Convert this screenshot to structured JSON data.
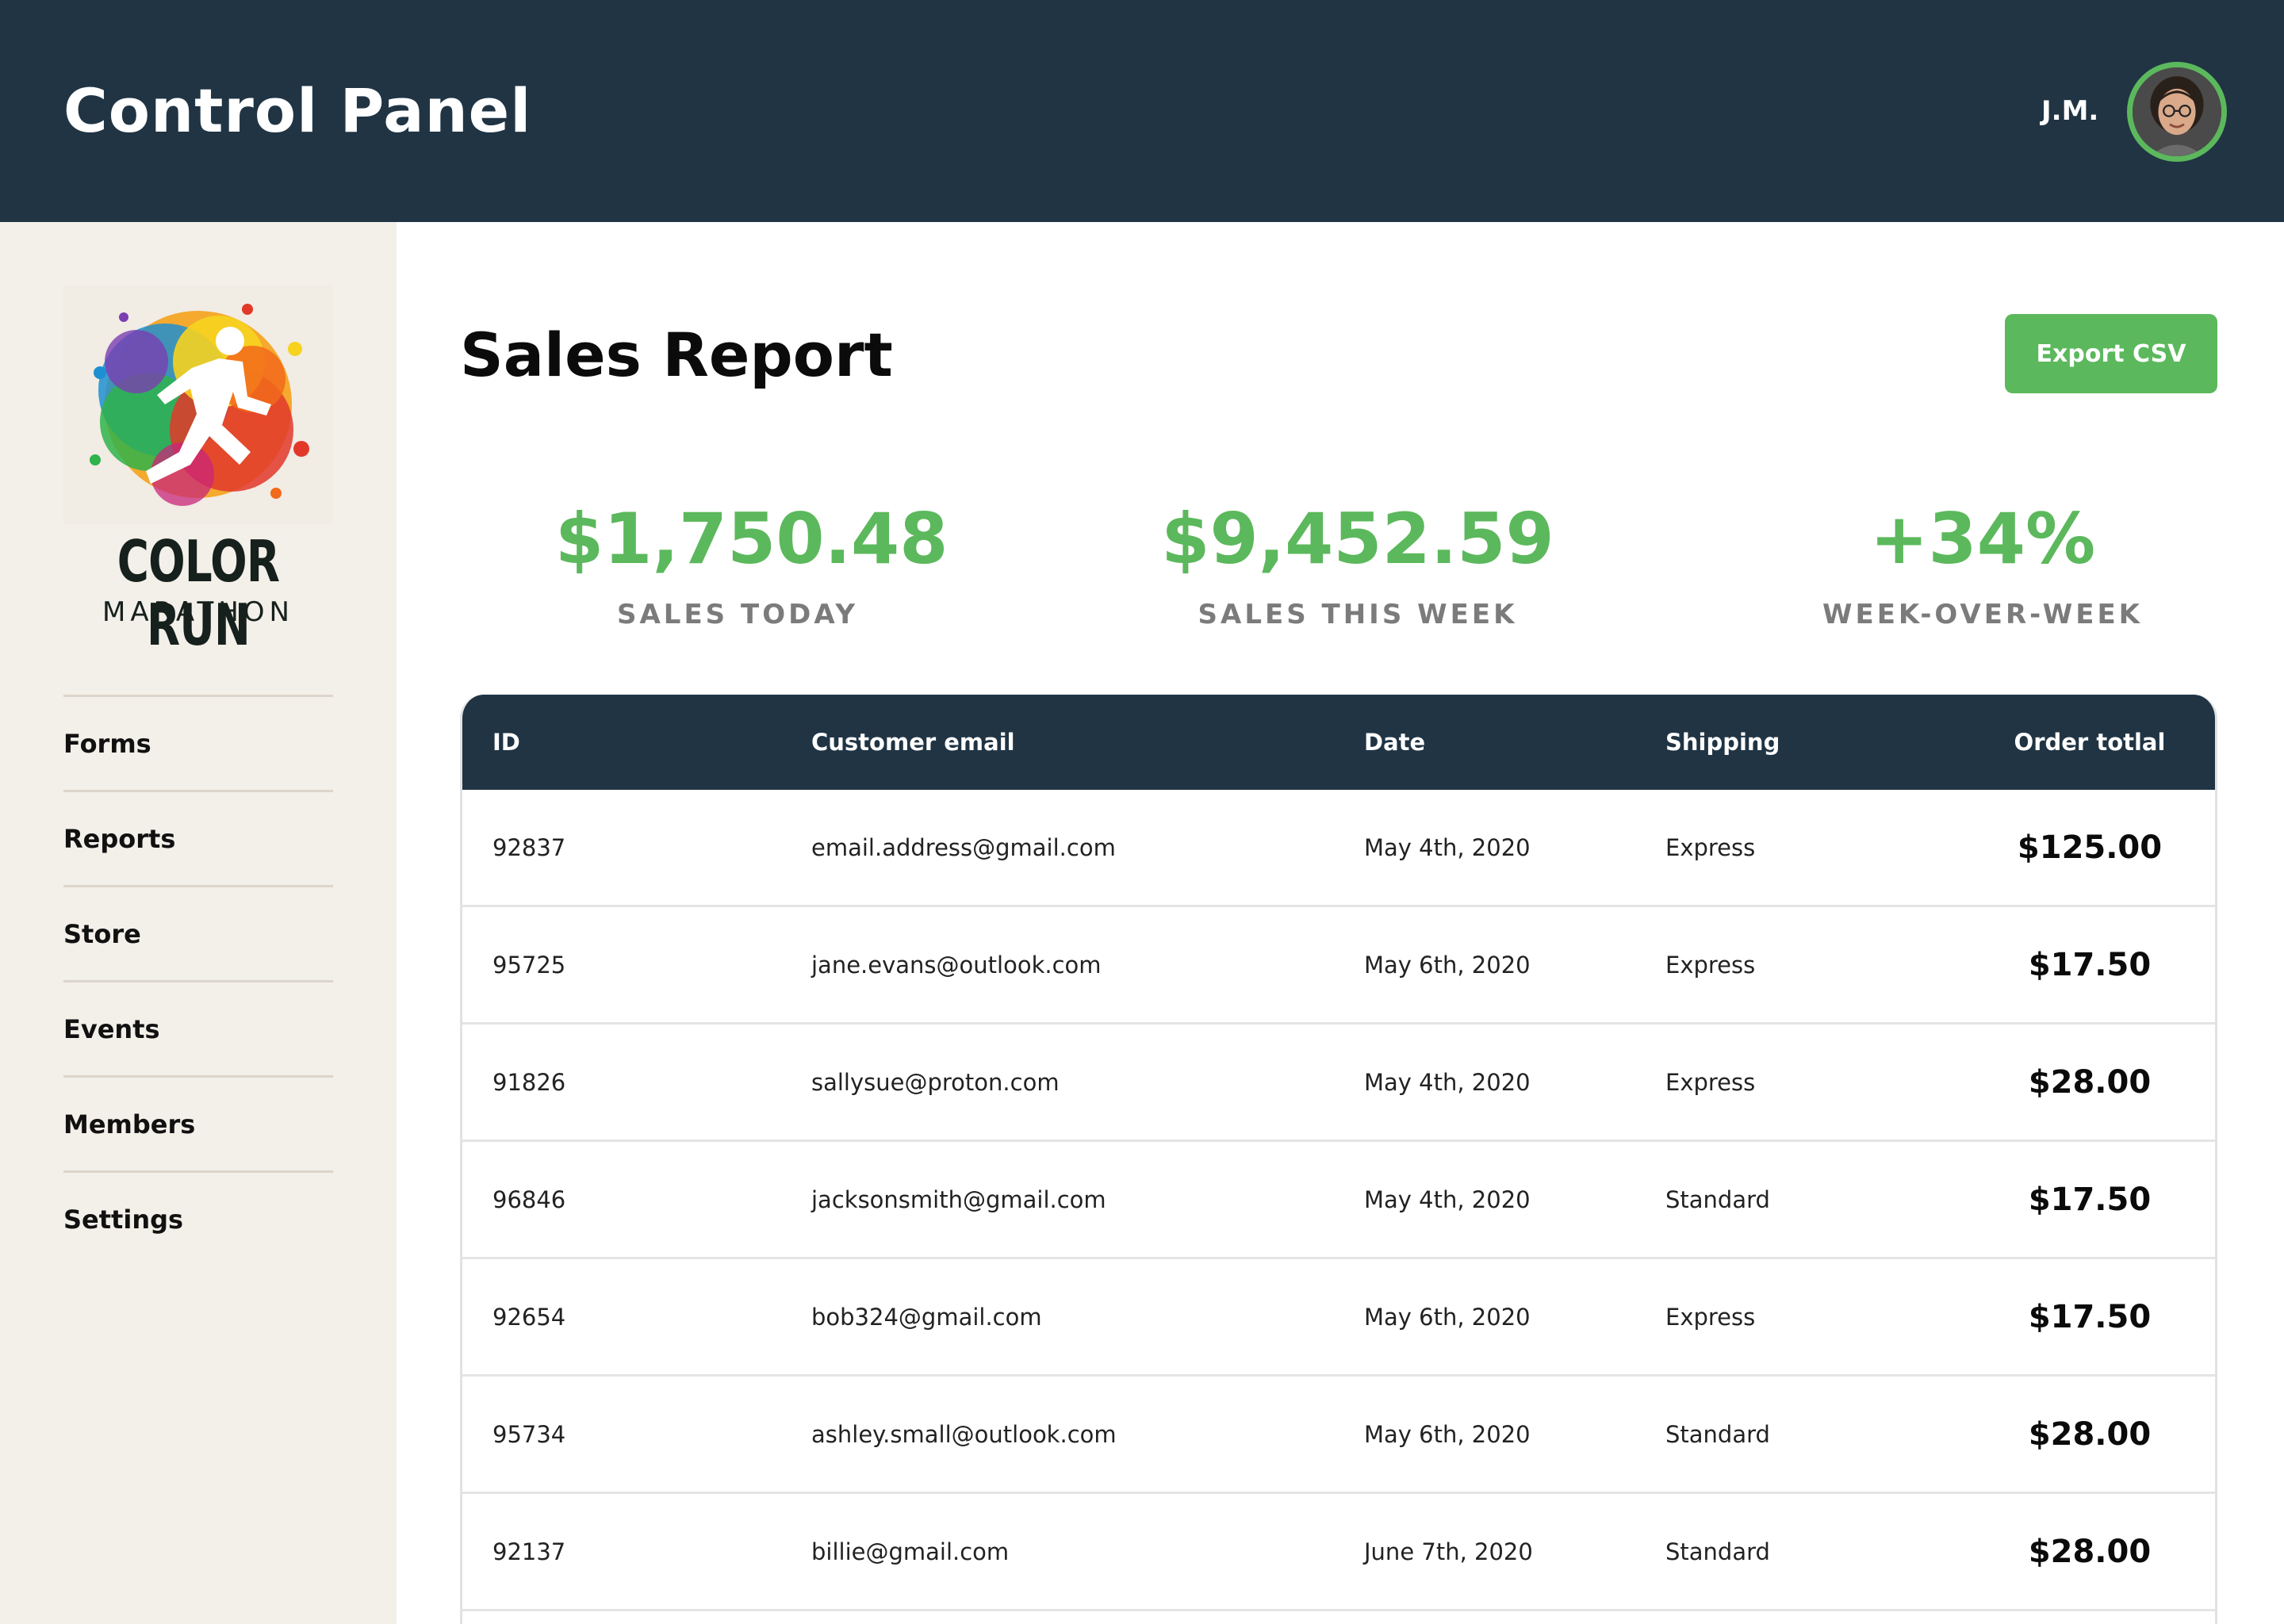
{
  "header": {
    "title": "Control Panel",
    "user_initials": "J.M."
  },
  "sidebar": {
    "logo": {
      "title": "COLOR RUN",
      "subtitle": "MARATHON"
    },
    "items": [
      {
        "label": "Forms"
      },
      {
        "label": "Reports"
      },
      {
        "label": "Store"
      },
      {
        "label": "Events"
      },
      {
        "label": "Members"
      },
      {
        "label": "Settings"
      }
    ]
  },
  "main": {
    "title": "Sales Report",
    "export_label": "Export CSV",
    "stats": [
      {
        "value": "$1,750.48",
        "label": "SALES TODAY"
      },
      {
        "value": "$9,452.59",
        "label": "SALES THIS WEEK"
      },
      {
        "value": "+34%",
        "label": "WEEK-OVER-WEEK"
      }
    ],
    "table": {
      "columns": [
        "ID",
        "Customer email",
        "Date",
        "Shipping",
        "Order totlal"
      ],
      "rows": [
        [
          "92837",
          "email.address@gmail.com",
          "May 4th, 2020",
          "Express",
          "$125.00"
        ],
        [
          "95725",
          "jane.evans@outlook.com",
          "May 6th, 2020",
          "Express",
          "$17.50"
        ],
        [
          "91826",
          "sallysue@proton.com",
          "May 4th, 2020",
          "Express",
          "$28.00"
        ],
        [
          "96846",
          "jacksonsmith@gmail.com",
          "May 4th, 2020",
          "Standard",
          "$17.50"
        ],
        [
          "92654",
          "bob324@gmail.com",
          "May 6th, 2020",
          "Express",
          "$17.50"
        ],
        [
          "95734",
          "ashley.small@outlook.com",
          "May 6th, 2020",
          "Standard",
          "$28.00"
        ],
        [
          "92137",
          "billie@gmail.com",
          "June 7th, 2020",
          "Standard",
          "$28.00"
        ]
      ]
    }
  },
  "colors": {
    "header_bg": "#203444",
    "accent_green": "#5cb85c",
    "sidebar_bg": "#f3efe9"
  }
}
